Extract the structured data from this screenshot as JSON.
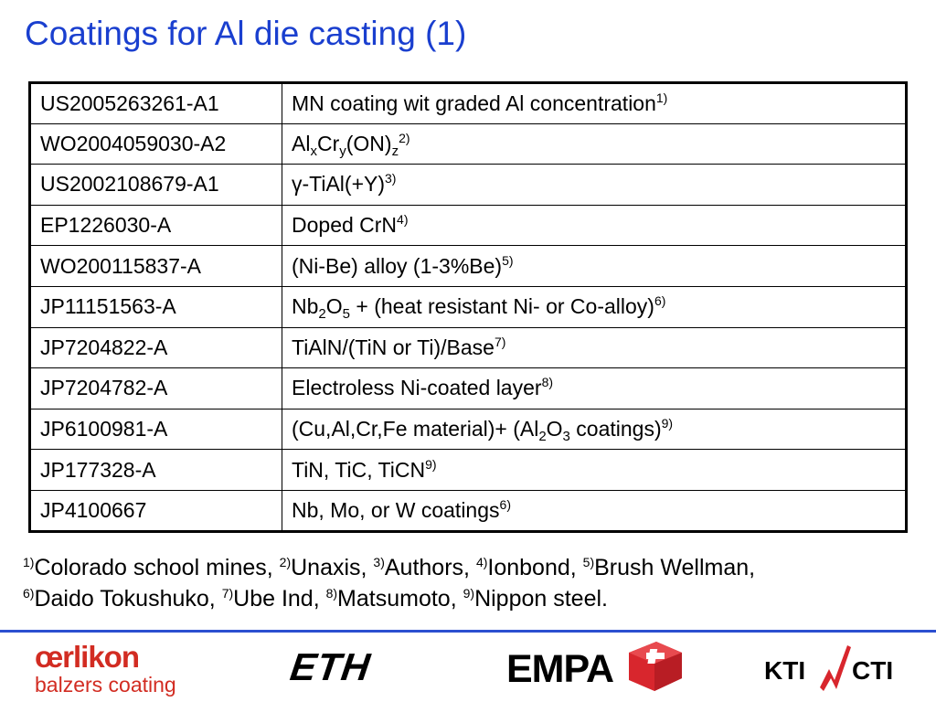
{
  "title": "Coatings for Al die casting (1)",
  "rows": [
    {
      "patent": "US2005263261-A1",
      "pre": "MN coating wit graded Al concentration",
      "sup": "1)"
    },
    {
      "patent": "WO2004059030-A2",
      "pre": "Al",
      "sub1": "x",
      "mid": "Cr",
      "sub2": "y",
      "post": "(ON)",
      "sub3": "z",
      "sup": "2)"
    },
    {
      "patent": "US2002108679-A1",
      "pre": "γ-TiAl(+Y)",
      "sup": "3)"
    },
    {
      "patent": "EP1226030-A",
      "pre": "Doped CrN",
      "sup": "4)"
    },
    {
      "patent": "WO200115837-A",
      "pre": "(Ni-Be) alloy (1-3%Be)",
      "sup": "5)"
    },
    {
      "patent": "JP11151563-A",
      "pre": "Nb",
      "sub1": "2",
      "mid": "O",
      "sub2": "5",
      "post": " + (heat resistant Ni- or Co-alloy)",
      "sup": "6)"
    },
    {
      "patent": "JP7204822-A",
      "pre": "TiAlN/(TiN or Ti)/Base",
      "sup": "7)"
    },
    {
      "patent": "JP7204782-A",
      "pre": "Electroless Ni-coated layer",
      "sup": "8)"
    },
    {
      "patent": "JP6100981-A",
      "pre": "(Cu,Al,Cr,Fe material)+ (Al",
      "sub1": "2",
      "mid": "O",
      "sub2": "3",
      "post": " coatings)",
      "sup": "9)"
    },
    {
      "patent": "JP177328-A",
      "pre": "TiN, TiC, TiCN",
      "sup": "9)"
    },
    {
      "patent": "JP4100667",
      "pre": "Nb, Mo, or W coatings",
      "sup": "6)"
    }
  ],
  "notes": {
    "line1": [
      {
        "sup": "1)",
        "text": "Colorado school mines, "
      },
      {
        "sup": "2)",
        "text": "Unaxis, "
      },
      {
        "sup": "3)",
        "text": "Authors, "
      },
      {
        "sup": "4)",
        "text": "Ionbond, "
      },
      {
        "sup": "5)",
        "text": "Brush Wellman,"
      }
    ],
    "line2": [
      {
        "sup": "6)",
        "text": "Daido Tokushuko, "
      },
      {
        "sup": "7)",
        "text": "Ube Ind, "
      },
      {
        "sup": "8)",
        "text": "Matsumoto, "
      },
      {
        "sup": "9)",
        "text": "Nippon steel."
      }
    ]
  },
  "logos": {
    "oerlikon_name": "œrlikon",
    "oerlikon_sub": "balzers coating",
    "eth": "ETH",
    "empa": "EMPA",
    "kti": "KTI",
    "cti": "CTI"
  },
  "colors": {
    "title": "#1a3fcf",
    "rule": "#2b4fd0",
    "brand_red": "#d22c22"
  }
}
